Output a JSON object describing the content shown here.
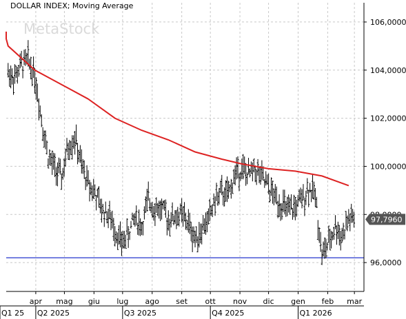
{
  "chart_data": {
    "type": "line",
    "title": "DOLLAR INDEX; Moving Average",
    "watermark": "MetaStock",
    "y_ticks": [
      "106,0000",
      "104,0000",
      "102,0000",
      "100,0000",
      "98,0000",
      "96,0000"
    ],
    "ylim": [
      94.8,
      106.8
    ],
    "month_ticks": [
      "apr",
      "mag",
      "giu",
      "lug",
      "ago",
      "set",
      "ott",
      "nov",
      "dic",
      "gen",
      "feb",
      "mar"
    ],
    "quarter_ticks": [
      "Q1 25",
      "Q2 2025",
      "Q3 2025",
      "Q4 2025",
      "Q1 2026"
    ],
    "last_price_label": "97,7960",
    "last_price": 97.796,
    "reference_line": {
      "value": 96.2,
      "color": "#2233cc"
    },
    "series": [
      {
        "style": "ohlc-bars",
        "color": "#000000",
        "x": [
          "2025-03-03",
          "2025-03-10",
          "2025-03-17",
          "2025-03-24",
          "2025-03-31",
          "2025-04-07",
          "2025-04-14",
          "2025-04-21",
          "2025-04-28",
          "2025-05-05",
          "2025-05-12",
          "2025-05-19",
          "2025-05-26",
          "2025-06-02",
          "2025-06-09",
          "2025-06-16",
          "2025-06-23",
          "2025-06-30",
          "2025-07-07",
          "2025-07-14",
          "2025-07-21",
          "2025-07-28",
          "2025-08-04",
          "2025-08-11",
          "2025-08-18",
          "2025-08-25",
          "2025-09-01",
          "2025-09-08",
          "2025-09-15",
          "2025-09-22",
          "2025-09-29",
          "2025-10-06",
          "2025-10-13",
          "2025-10-20",
          "2025-10-27",
          "2025-11-03",
          "2025-11-10",
          "2025-11-17",
          "2025-11-24",
          "2025-12-01",
          "2025-12-08",
          "2025-12-15",
          "2025-12-22",
          "2025-12-29",
          "2026-01-05",
          "2026-01-12",
          "2026-01-19",
          "2026-01-26",
          "2026-02-02",
          "2026-02-09",
          "2026-02-16",
          "2026-02-23"
        ],
        "values": [
          103.9,
          103.7,
          104.2,
          104.4,
          103.8,
          102.0,
          100.4,
          99.9,
          99.5,
          100.8,
          101.2,
          100.0,
          99.3,
          98.9,
          98.2,
          98.0,
          97.4,
          96.8,
          97.2,
          97.9,
          97.5,
          98.6,
          98.3,
          98.2,
          97.8,
          97.9,
          98.0,
          97.6,
          97.0,
          97.4,
          97.8,
          98.6,
          98.9,
          98.8,
          99.7,
          99.9,
          99.6,
          99.9,
          99.5,
          99.1,
          98.7,
          98.4,
          98.1,
          98.3,
          98.6,
          99.1,
          98.8,
          96.3,
          96.8,
          97.5,
          97.1,
          97.8
        ]
      },
      {
        "style": "line",
        "color": "#dd2222",
        "x": [
          "2025-01-06",
          "2025-02-03",
          "2025-03-03",
          "2025-03-31",
          "2025-04-28",
          "2025-05-26",
          "2025-06-23",
          "2025-07-21",
          "2025-08-18",
          "2025-09-15",
          "2025-10-13",
          "2025-11-03",
          "2025-12-01",
          "2025-12-29",
          "2026-01-26",
          "2026-02-23"
        ],
        "values": [
          105.6,
          105.3,
          105.0,
          104.0,
          103.4,
          102.8,
          102.0,
          101.5,
          101.1,
          100.6,
          100.3,
          100.1,
          99.9,
          99.8,
          99.6,
          99.2
        ]
      }
    ]
  }
}
